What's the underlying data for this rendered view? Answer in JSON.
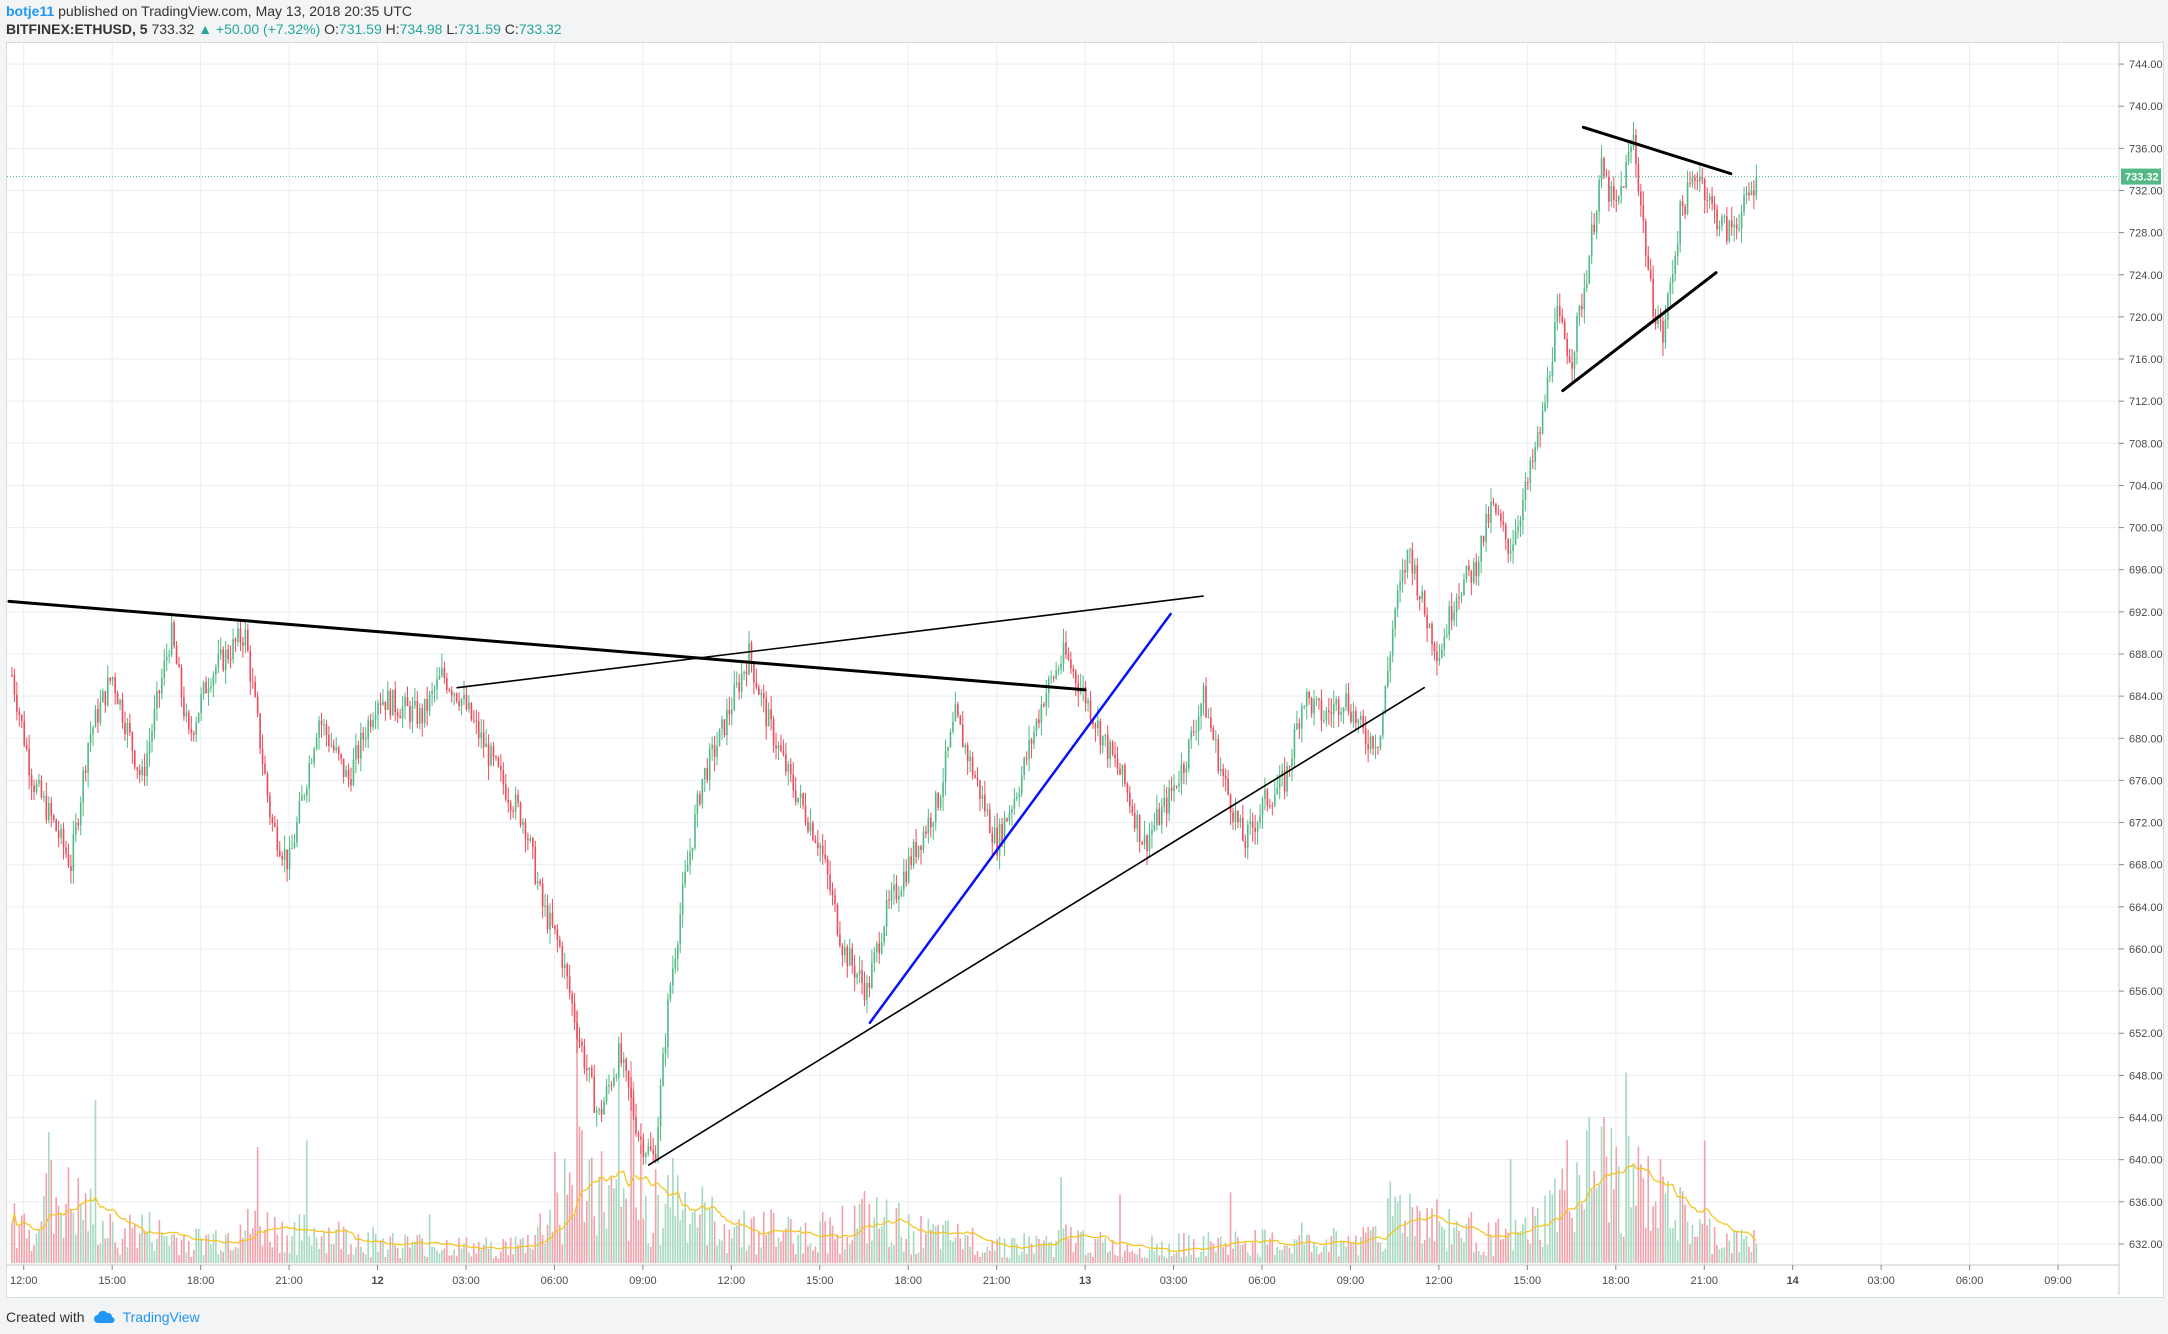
{
  "header": {
    "author": "botje11",
    "published": "published on TradingView.com, May 13, 2018 20:35 UTC",
    "symbol": "BITFINEX:ETHUSD, 5",
    "last": "733.32",
    "change": "▲ +50.00 (+7.32%)",
    "o_label": "O:",
    "o_value": "731.59",
    "h_label": "H:",
    "h_value": "734.98",
    "l_label": "L:",
    "l_value": "731.59",
    "c_label": "C:",
    "c_value": "733.32"
  },
  "footer": {
    "created_with": "Created with",
    "brand": "TradingView",
    "icon": "tradingview-cloud-icon"
  },
  "colors": {
    "up": "#53b987",
    "down": "#eb4d5c",
    "volume_ma": "#f5c623",
    "trendline": "#000000",
    "blue_trendline": "#0a12f5",
    "price_line": "#53b987",
    "grid": "#e9eef0"
  },
  "chart_data": {
    "type": "candlestick",
    "symbol": "BITFINEX:ETHUSD",
    "interval": "5",
    "last_price": 733.32,
    "last_price_label": "733.32",
    "ylim": [
      630,
      746
    ],
    "y_ticks": [
      "744.00",
      "740.00",
      "736.00",
      "732.00",
      "728.00",
      "724.00",
      "720.00",
      "716.00",
      "712.00",
      "708.00",
      "704.00",
      "700.00",
      "696.00",
      "692.00",
      "688.00",
      "684.00",
      "680.00",
      "676.00",
      "672.00",
      "668.00",
      "664.00",
      "660.00",
      "656.00",
      "652.00",
      "648.00",
      "644.00",
      "640.00",
      "636.00",
      "632.00"
    ],
    "x_range": [
      11.5,
      83.0
    ],
    "x_ticks": [
      {
        "label": "12:00",
        "t": 12
      },
      {
        "label": "15:00",
        "t": 15
      },
      {
        "label": "18:00",
        "t": 18
      },
      {
        "label": "21:00",
        "t": 21
      },
      {
        "label": "12",
        "t": 24,
        "bold": true
      },
      {
        "label": "03:00",
        "t": 27
      },
      {
        "label": "06:00",
        "t": 30
      },
      {
        "label": "09:00",
        "t": 33
      },
      {
        "label": "12:00",
        "t": 36
      },
      {
        "label": "15:00",
        "t": 39
      },
      {
        "label": "18:00",
        "t": 42
      },
      {
        "label": "21:00",
        "t": 45
      },
      {
        "label": "13",
        "t": 48,
        "bold": true
      },
      {
        "label": "03:00",
        "t": 51
      },
      {
        "label": "06:00",
        "t": 54
      },
      {
        "label": "09:00",
        "t": 57
      },
      {
        "label": "12:00",
        "t": 60
      },
      {
        "label": "15:00",
        "t": 63
      },
      {
        "label": "18:00",
        "t": 66
      },
      {
        "label": "21:00",
        "t": 69
      },
      {
        "label": "14",
        "t": 72,
        "bold": true
      },
      {
        "label": "03:00",
        "t": 75
      },
      {
        "label": "06:00",
        "t": 78
      },
      {
        "label": "09:00",
        "t": 81
      }
    ],
    "price_path": [
      [
        11.6,
        686
      ],
      [
        12.3,
        676
      ],
      [
        13.0,
        672
      ],
      [
        13.6,
        668
      ],
      [
        14.2,
        680
      ],
      [
        15.0,
        686
      ],
      [
        16.0,
        676
      ],
      [
        17.0,
        690
      ],
      [
        17.6,
        680
      ],
      [
        18.3,
        686
      ],
      [
        19.5,
        690
      ],
      [
        20.4,
        672
      ],
      [
        21.0,
        668
      ],
      [
        22.0,
        682
      ],
      [
        23.0,
        676
      ],
      [
        24.0,
        684
      ],
      [
        25.5,
        682
      ],
      [
        26.2,
        686
      ],
      [
        26.8,
        684
      ],
      [
        27.5,
        680
      ],
      [
        28.2,
        676
      ],
      [
        29.0,
        672
      ],
      [
        29.6,
        664
      ],
      [
        30.2,
        660
      ],
      [
        30.8,
        652
      ],
      [
        31.5,
        644
      ],
      [
        32.2,
        650
      ],
      [
        32.9,
        642
      ],
      [
        33.4,
        640
      ],
      [
        33.9,
        656
      ],
      [
        34.4,
        666
      ],
      [
        35.0,
        676
      ],
      [
        35.6,
        680
      ],
      [
        36.6,
        688
      ],
      [
        37.2,
        682
      ],
      [
        38.0,
        676
      ],
      [
        39.0,
        670
      ],
      [
        39.8,
        660
      ],
      [
        40.6,
        656
      ],
      [
        41.2,
        663
      ],
      [
        42.0,
        668
      ],
      [
        43.0,
        674
      ],
      [
        43.6,
        682
      ],
      [
        44.3,
        676
      ],
      [
        45.0,
        670
      ],
      [
        45.8,
        676
      ],
      [
        46.6,
        684
      ],
      [
        47.3,
        688
      ],
      [
        48.0,
        684
      ],
      [
        48.6,
        680
      ],
      [
        49.3,
        676
      ],
      [
        50.0,
        670
      ],
      [
        50.8,
        674
      ],
      [
        51.4,
        678
      ],
      [
        52.0,
        684
      ],
      [
        52.7,
        676
      ],
      [
        53.4,
        670
      ],
      [
        54.1,
        674
      ],
      [
        54.8,
        676
      ],
      [
        55.4,
        684
      ],
      [
        56.1,
        682
      ],
      [
        56.8,
        684
      ],
      [
        57.5,
        680
      ],
      [
        58.0,
        680
      ],
      [
        58.5,
        692
      ],
      [
        59.0,
        698
      ],
      [
        59.5,
        692
      ],
      [
        60.0,
        688
      ],
      [
        60.6,
        694
      ],
      [
        61.2,
        696
      ],
      [
        61.8,
        702
      ],
      [
        62.4,
        698
      ],
      [
        63.0,
        704
      ],
      [
        63.5,
        710
      ],
      [
        64.0,
        720
      ],
      [
        64.5,
        716
      ],
      [
        65.0,
        724
      ],
      [
        65.5,
        734
      ],
      [
        66.0,
        730
      ],
      [
        66.6,
        737
      ],
      [
        67.2,
        722
      ],
      [
        67.6,
        718
      ],
      [
        68.2,
        730
      ],
      [
        68.8,
        734
      ],
      [
        69.3,
        730
      ],
      [
        69.8,
        728
      ],
      [
        70.3,
        730
      ],
      [
        70.8,
        733.32
      ]
    ],
    "volume_ylim": [
      0,
      1000
    ],
    "volume_note": "volume bars shown beneath price; values not labeled",
    "volume_profile": [
      [
        12,
        120
      ],
      [
        13,
        210
      ],
      [
        14,
        170
      ],
      [
        15,
        90
      ],
      [
        16,
        110
      ],
      [
        17,
        80
      ],
      [
        18,
        70
      ],
      [
        19,
        90
      ],
      [
        20,
        120
      ],
      [
        21,
        90
      ],
      [
        22,
        100
      ],
      [
        23,
        80
      ],
      [
        24,
        70
      ],
      [
        25,
        60
      ],
      [
        26,
        60
      ],
      [
        27,
        50
      ],
      [
        28,
        50
      ],
      [
        29,
        60
      ],
      [
        30,
        160
      ],
      [
        30.8,
        300
      ],
      [
        31.5,
        240
      ],
      [
        32.2,
        160
      ],
      [
        33,
        140
      ],
      [
        33.8,
        260
      ],
      [
        34.5,
        180
      ],
      [
        35.5,
        120
      ],
      [
        36.5,
        110
      ],
      [
        37.5,
        100
      ],
      [
        38.5,
        90
      ],
      [
        39.5,
        110
      ],
      [
        40.5,
        140
      ],
      [
        41.5,
        120
      ],
      [
        42.5,
        90
      ],
      [
        43.5,
        80
      ],
      [
        44.5,
        70
      ],
      [
        45.5,
        60
      ],
      [
        46.5,
        60
      ],
      [
        47.5,
        80
      ],
      [
        48.5,
        60
      ],
      [
        49.5,
        50
      ],
      [
        50.5,
        50
      ],
      [
        51.5,
        60
      ],
      [
        52.5,
        60
      ],
      [
        53.5,
        70
      ],
      [
        54.5,
        60
      ],
      [
        55.5,
        60
      ],
      [
        56.5,
        70
      ],
      [
        57.5,
        80
      ],
      [
        58.5,
        180
      ],
      [
        59.5,
        150
      ],
      [
        60.5,
        110
      ],
      [
        61.5,
        90
      ],
      [
        62.5,
        80
      ],
      [
        63.5,
        130
      ],
      [
        64.5,
        260
      ],
      [
        65.5,
        300
      ],
      [
        66.5,
        250
      ],
      [
        67.5,
        200
      ],
      [
        68.5,
        120
      ],
      [
        69.5,
        80
      ],
      [
        70.5,
        60
      ]
    ],
    "drawings": [
      {
        "type": "trendline",
        "color": "#000000",
        "width": 3,
        "from": [
          11.5,
          693
        ],
        "to": [
          48.0,
          684.6
        ]
      },
      {
        "type": "trendline",
        "color": "#000000",
        "width": 1.6,
        "from": [
          26.7,
          684.8
        ],
        "to": [
          52.0,
          693.5
        ]
      },
      {
        "type": "trendline",
        "color": "#000000",
        "width": 1.6,
        "from": [
          33.2,
          639.5
        ],
        "to": [
          59.5,
          684.8
        ]
      },
      {
        "type": "trendline",
        "color": "#0a12f5",
        "width": 2.5,
        "from": [
          40.7,
          653
        ],
        "to": [
          50.9,
          691.8
        ]
      },
      {
        "type": "trendline",
        "color": "#000000",
        "width": 3,
        "from": [
          64.2,
          713
        ],
        "to": [
          69.4,
          724.2
        ]
      },
      {
        "type": "trendline",
        "color": "#000000",
        "width": 3,
        "from": [
          64.9,
          738
        ],
        "to": [
          69.9,
          733.6
        ]
      }
    ]
  }
}
